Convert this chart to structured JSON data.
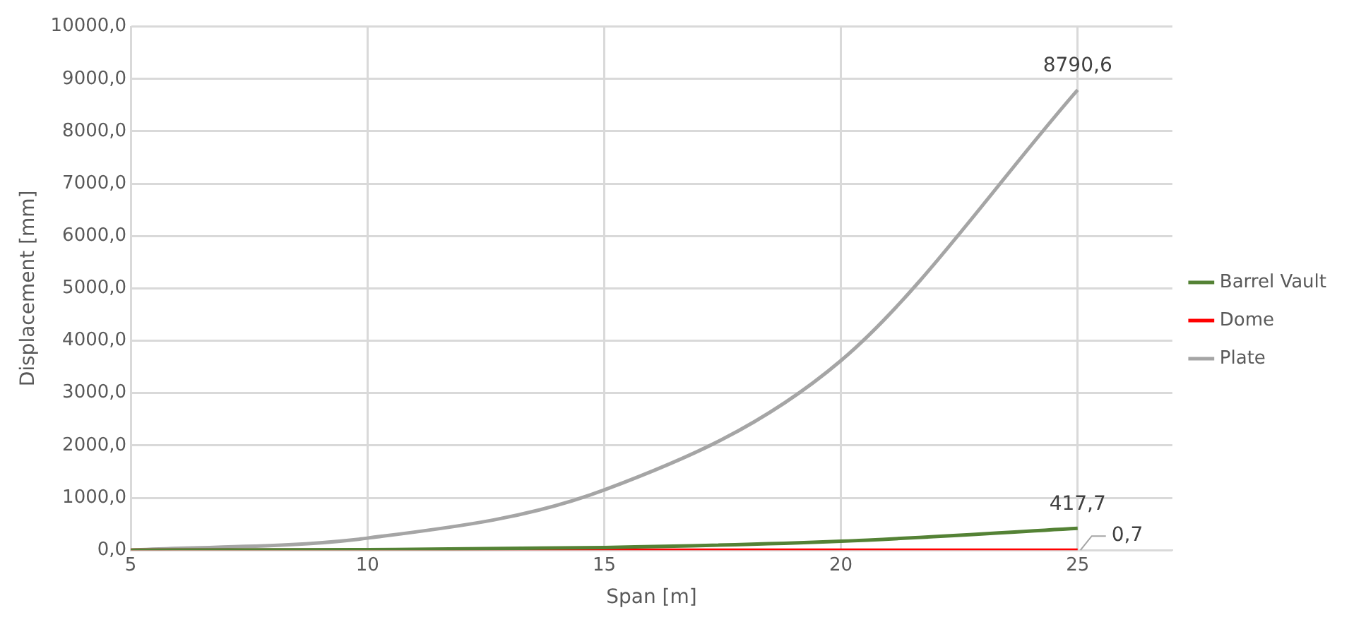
{
  "chart_data": {
    "type": "line",
    "xlabel": "Span [m]",
    "ylabel": "Displacement [mm]",
    "x": [
      5,
      10,
      15,
      20,
      25
    ],
    "xlim": [
      5,
      27
    ],
    "xticks": [
      5,
      10,
      15,
      20,
      25
    ],
    "ylim": [
      0,
      10000
    ],
    "yticks": [
      {
        "value": 0,
        "label": "0,0"
      },
      {
        "value": 1000,
        "label": "1000,0"
      },
      {
        "value": 2000,
        "label": "2000,0"
      },
      {
        "value": 3000,
        "label": "3000,0"
      },
      {
        "value": 4000,
        "label": "4000,0"
      },
      {
        "value": 5000,
        "label": "5000,0"
      },
      {
        "value": 6000,
        "label": "6000,0"
      },
      {
        "value": 7000,
        "label": "7000,0"
      },
      {
        "value": 8000,
        "label": "8000,0"
      },
      {
        "value": 9000,
        "label": "9000,0"
      },
      {
        "value": 10000,
        "label": "10000,0"
      }
    ],
    "grid": true,
    "legend": "right",
    "marker": "none",
    "line_style": "solid",
    "series": [
      {
        "name": "Barrel Vault",
        "color": "#548235",
        "values": [
          0,
          10,
          50,
          170,
          417.7
        ],
        "value_labels": [
          null,
          null,
          null,
          null,
          "417,7"
        ]
      },
      {
        "name": "Dome",
        "color": "#ff0000",
        "values": [
          0,
          0,
          0,
          0,
          0.7
        ],
        "value_labels": [
          null,
          null,
          null,
          null,
          "0,7"
        ]
      },
      {
        "name": "Plate",
        "color": "#a5a5a5",
        "values": [
          0,
          230,
          1150,
          3620,
          8790.6
        ],
        "value_labels": [
          null,
          null,
          null,
          null,
          "8790,6"
        ]
      }
    ]
  }
}
